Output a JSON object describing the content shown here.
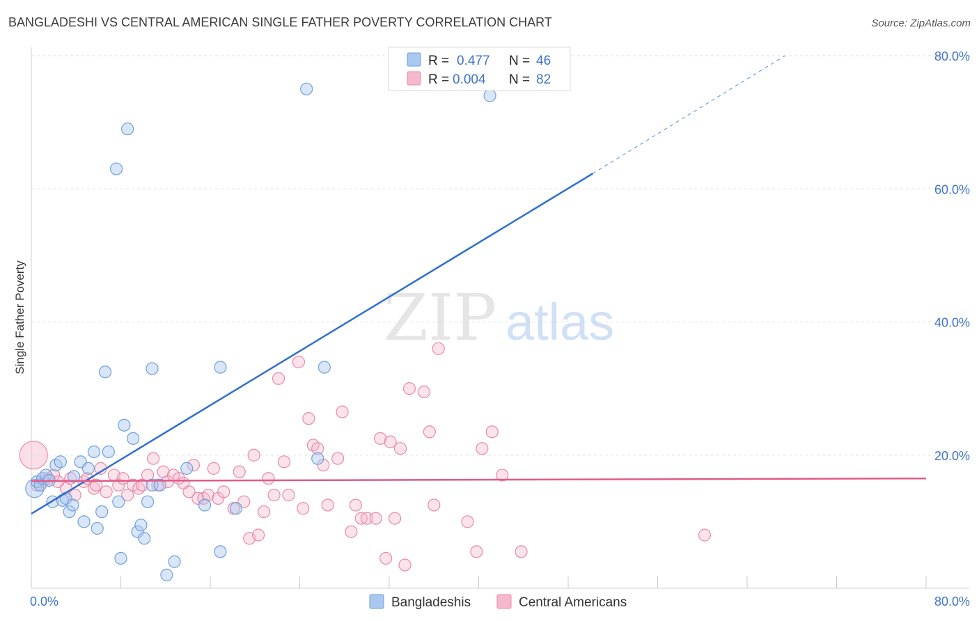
{
  "header": {
    "title": "BANGLADESHI VS CENTRAL AMERICAN SINGLE FATHER POVERTY CORRELATION CHART",
    "source": "Source: ZipAtlas.com"
  },
  "watermark": {
    "zip": "ZIP",
    "atlas": "atlas"
  },
  "stats_legend": [
    {
      "r_label": "R =",
      "r_value": "0.477",
      "n_label": "N =",
      "n_value": "46"
    },
    {
      "r_label": "R =",
      "r_value": "0.004",
      "n_label": "N =",
      "n_value": "82"
    }
  ],
  "chart_data": {
    "type": "scatter",
    "title": "BANGLADESHI VS CENTRAL AMERICAN SINGLE FATHER POVERTY CORRELATION CHART",
    "xlabel": "",
    "ylabel": "Single Father Poverty",
    "xlim": [
      0,
      80
    ],
    "ylim": [
      0,
      80
    ],
    "x_tick_labels": [
      "0.0%",
      "80.0%"
    ],
    "y_ticks": [
      20,
      40,
      60,
      80
    ],
    "y_tick_labels": [
      "20.0%",
      "40.0%",
      "60.0%",
      "80.0%"
    ],
    "grid": true,
    "legend_position": "bottom",
    "colors": {
      "Bangladeshis": {
        "fill": "#aac8f0",
        "stroke": "#6f9fdc",
        "line": "#2f6fcf"
      },
      "Central Americans": {
        "fill": "#f6b8cc",
        "stroke": "#e88aa8",
        "line": "#e05a88"
      },
      "axis_text": "#3f74c9"
    },
    "series": [
      {
        "name": "Bangladeshis",
        "r": 0.477,
        "n": 46,
        "trend": {
          "x0": 0,
          "y0": 11.2,
          "x1": 50.2,
          "y1": 62.3,
          "dash_to_x": 67.4,
          "dash_to_y": 80
        },
        "points": [
          [
            0.3,
            15.0
          ],
          [
            0.5,
            16.0
          ],
          [
            0.8,
            15.5
          ],
          [
            1.0,
            16.5
          ],
          [
            1.3,
            17.0
          ],
          [
            1.6,
            16.2
          ],
          [
            1.9,
            13.0
          ],
          [
            2.2,
            18.5
          ],
          [
            2.6,
            19.0
          ],
          [
            2.8,
            13.2
          ],
          [
            3.1,
            13.5
          ],
          [
            3.4,
            11.5
          ],
          [
            3.7,
            12.5
          ],
          [
            3.8,
            16.8
          ],
          [
            4.4,
            19.0
          ],
          [
            4.7,
            10.0
          ],
          [
            5.1,
            18.0
          ],
          [
            5.6,
            20.5
          ],
          [
            5.9,
            9.0
          ],
          [
            6.3,
            11.5
          ],
          [
            6.6,
            32.5
          ],
          [
            6.9,
            20.5
          ],
          [
            7.6,
            63.0
          ],
          [
            7.8,
            13.0
          ],
          [
            8.0,
            4.5
          ],
          [
            8.3,
            24.5
          ],
          [
            8.6,
            69.0
          ],
          [
            9.1,
            22.5
          ],
          [
            9.5,
            8.5
          ],
          [
            9.8,
            9.5
          ],
          [
            10.1,
            7.5
          ],
          [
            10.4,
            13.0
          ],
          [
            10.8,
            33.0
          ],
          [
            10.8,
            15.5
          ],
          [
            11.5,
            15.5
          ],
          [
            12.1,
            2.0
          ],
          [
            12.8,
            4.0
          ],
          [
            13.9,
            18.0
          ],
          [
            15.5,
            12.5
          ],
          [
            16.9,
            5.5
          ],
          [
            16.9,
            33.2
          ],
          [
            18.3,
            12.0
          ],
          [
            24.6,
            75.0
          ],
          [
            25.6,
            19.5
          ],
          [
            26.2,
            33.2
          ],
          [
            41.0,
            74.0
          ]
        ]
      },
      {
        "name": "Central Americans",
        "r": 0.004,
        "n": 82,
        "trend": {
          "x0": 0,
          "y0": 16.1,
          "x1": 80,
          "y1": 16.5
        },
        "points": [
          [
            0.2,
            20.0
          ],
          [
            0.5,
            15.5
          ],
          [
            1.0,
            16.0
          ],
          [
            1.5,
            16.5
          ],
          [
            2.0,
            17.0
          ],
          [
            2.4,
            16.0
          ],
          [
            3.1,
            15.0
          ],
          [
            3.5,
            16.5
          ],
          [
            3.9,
            14.0
          ],
          [
            4.7,
            16.0
          ],
          [
            5.0,
            16.5
          ],
          [
            5.6,
            15.0
          ],
          [
            5.8,
            15.5
          ],
          [
            6.2,
            18.0
          ],
          [
            6.7,
            14.5
          ],
          [
            7.4,
            17.0
          ],
          [
            7.8,
            15.5
          ],
          [
            8.2,
            16.5
          ],
          [
            8.6,
            14.0
          ],
          [
            9.1,
            15.5
          ],
          [
            9.6,
            15.0
          ],
          [
            9.9,
            15.5
          ],
          [
            10.4,
            17.0
          ],
          [
            10.9,
            19.5
          ],
          [
            11.3,
            15.5
          ],
          [
            11.8,
            17.5
          ],
          [
            12.2,
            16.0
          ],
          [
            12.7,
            17.0
          ],
          [
            13.2,
            16.5
          ],
          [
            13.6,
            15.8
          ],
          [
            14.1,
            14.5
          ],
          [
            14.5,
            18.5
          ],
          [
            14.9,
            13.5
          ],
          [
            15.4,
            13.5
          ],
          [
            15.8,
            14.0
          ],
          [
            16.3,
            18.0
          ],
          [
            16.7,
            13.5
          ],
          [
            17.2,
            14.5
          ],
          [
            18.1,
            12.0
          ],
          [
            18.6,
            17.5
          ],
          [
            19.0,
            13.0
          ],
          [
            19.5,
            7.5
          ],
          [
            19.9,
            20.0
          ],
          [
            20.3,
            8.0
          ],
          [
            20.8,
            11.5
          ],
          [
            21.2,
            16.5
          ],
          [
            21.7,
            14.0
          ],
          [
            22.1,
            31.5
          ],
          [
            22.6,
            19.0
          ],
          [
            23.0,
            14.0
          ],
          [
            23.9,
            34.0
          ],
          [
            24.3,
            12.0
          ],
          [
            24.8,
            25.5
          ],
          [
            25.2,
            21.5
          ],
          [
            25.6,
            21.0
          ],
          [
            26.1,
            18.5
          ],
          [
            26.5,
            12.5
          ],
          [
            27.4,
            19.5
          ],
          [
            27.8,
            26.5
          ],
          [
            28.6,
            8.5
          ],
          [
            29.0,
            12.5
          ],
          [
            29.5,
            10.5
          ],
          [
            30.0,
            10.5
          ],
          [
            30.8,
            10.5
          ],
          [
            31.2,
            22.5
          ],
          [
            31.7,
            4.5
          ],
          [
            32.1,
            22.0
          ],
          [
            32.5,
            10.5
          ],
          [
            33.0,
            21.0
          ],
          [
            33.4,
            3.5
          ],
          [
            33.8,
            30.0
          ],
          [
            35.1,
            29.5
          ],
          [
            35.6,
            23.5
          ],
          [
            36.0,
            12.5
          ],
          [
            36.4,
            36.0
          ],
          [
            39.0,
            10.0
          ],
          [
            39.8,
            5.5
          ],
          [
            40.3,
            21.0
          ],
          [
            41.2,
            23.5
          ],
          [
            42.1,
            17.0
          ],
          [
            43.8,
            5.5
          ],
          [
            60.2,
            8.0
          ]
        ]
      }
    ]
  },
  "bottom_legend": [
    {
      "label": "Bangladeshis"
    },
    {
      "label": "Central Americans"
    }
  ]
}
